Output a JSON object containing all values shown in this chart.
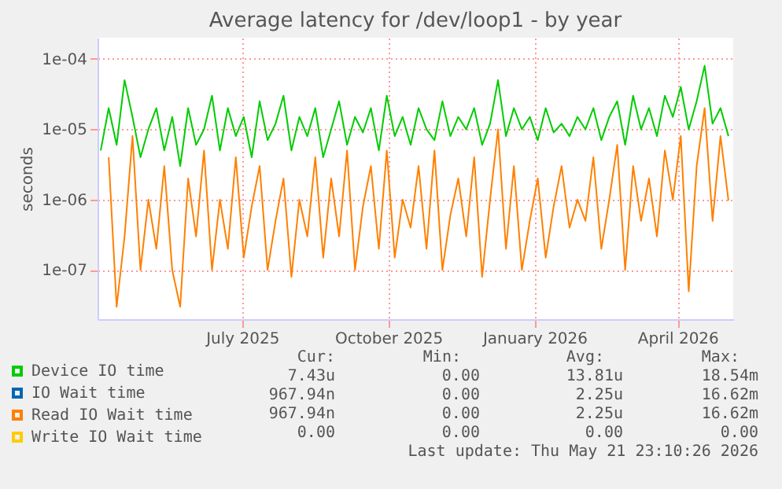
{
  "chart_data": {
    "type": "line",
    "title": "Average latency for /dev/loop1 - by year",
    "ylabel": "seconds",
    "log": "y",
    "grid": true,
    "legend": "bottom",
    "xlim": [
      "2025-04-16",
      "2026-05-21"
    ],
    "xticks": [
      {
        "value": "2025-07-16",
        "label": "July 2025"
      },
      {
        "value": "2025-10-16",
        "label": "October 2025"
      },
      {
        "value": "2026-01-16",
        "label": "January 2026"
      },
      {
        "value": "2026-04-16",
        "label": "April 2026"
      }
    ],
    "ylim": [
      2e-08,
      0.0002
    ],
    "yticks": [
      {
        "value": 1e-07,
        "label": "1e-07"
      },
      {
        "value": 1e-06,
        "label": "1e-06"
      },
      {
        "value": 1e-05,
        "label": "1e-05"
      },
      {
        "value": 0.0001,
        "label": "1e-04"
      }
    ],
    "x": [
      "2025-04-18",
      "2025-04-23",
      "2025-04-28",
      "2025-05-03",
      "2025-05-08",
      "2025-05-13",
      "2025-05-18",
      "2025-05-23",
      "2025-05-28",
      "2025-06-02",
      "2025-06-07",
      "2025-06-12",
      "2025-06-17",
      "2025-06-22",
      "2025-06-27",
      "2025-07-02",
      "2025-07-07",
      "2025-07-12",
      "2025-07-17",
      "2025-07-22",
      "2025-07-27",
      "2025-08-01",
      "2025-08-06",
      "2025-08-11",
      "2025-08-16",
      "2025-08-21",
      "2025-08-26",
      "2025-08-31",
      "2025-09-05",
      "2025-09-10",
      "2025-09-15",
      "2025-09-20",
      "2025-09-25",
      "2025-09-30",
      "2025-10-05",
      "2025-10-10",
      "2025-10-15",
      "2025-10-20",
      "2025-10-25",
      "2025-10-30",
      "2025-11-04",
      "2025-11-09",
      "2025-11-14",
      "2025-11-19",
      "2025-11-24",
      "2025-11-29",
      "2025-12-04",
      "2025-12-09",
      "2025-12-14",
      "2025-12-19",
      "2025-12-24",
      "2025-12-29",
      "2026-01-03",
      "2026-01-08",
      "2026-01-13",
      "2026-01-18",
      "2026-01-23",
      "2026-01-28",
      "2026-02-02",
      "2026-02-07",
      "2026-02-12",
      "2026-02-17",
      "2026-02-22",
      "2026-02-27",
      "2026-03-04",
      "2026-03-09",
      "2026-03-14",
      "2026-03-19",
      "2026-03-24",
      "2026-03-29",
      "2026-04-03",
      "2026-04-08",
      "2026-04-13",
      "2026-04-18",
      "2026-04-23",
      "2026-04-28",
      "2026-05-03",
      "2026-05-08",
      "2026-05-13",
      "2026-05-18"
    ],
    "series": [
      {
        "name": "Device IO time",
        "color": "#00cc00",
        "values": [
          5e-06,
          2e-05,
          6e-06,
          5e-05,
          1.5e-05,
          4e-06,
          1e-05,
          2e-05,
          5e-06,
          1.5e-05,
          3e-06,
          2e-05,
          6e-06,
          1e-05,
          3e-05,
          5e-06,
          2e-05,
          8e-06,
          1.5e-05,
          4e-06,
          2.5e-05,
          7e-06,
          1.2e-05,
          3e-05,
          5e-06,
          1.5e-05,
          8e-06,
          2e-05,
          4e-06,
          1e-05,
          2.5e-05,
          6e-06,
          1.5e-05,
          9e-06,
          2e-05,
          5e-06,
          3e-05,
          8e-06,
          1.5e-05,
          6e-06,
          2e-05,
          1e-05,
          7e-06,
          2.5e-05,
          8e-06,
          1.5e-05,
          1e-05,
          2e-05,
          6e-06,
          1.2e-05,
          5e-05,
          8e-06,
          2e-05,
          1e-05,
          1.5e-05,
          7e-06,
          2e-05,
          9e-06,
          1.2e-05,
          8e-06,
          1.5e-05,
          1e-05,
          2e-05,
          7e-06,
          1.5e-05,
          2.5e-05,
          6e-06,
          3e-05,
          1e-05,
          2e-05,
          8e-06,
          3e-05,
          1.5e-05,
          4e-05,
          1e-05,
          2.5e-05,
          8e-05,
          1.2e-05,
          2e-05,
          8e-06
        ]
      },
      {
        "name": "IO Wait time",
        "color": "#0066b3",
        "values": [
          null,
          null,
          null,
          null,
          null,
          null,
          null,
          null,
          null,
          null,
          null,
          null,
          null,
          null,
          null,
          null,
          null,
          null,
          null,
          null,
          null,
          null,
          null,
          null,
          null,
          null,
          null,
          null,
          null,
          null,
          null,
          null,
          null,
          null,
          null,
          null,
          null,
          null,
          null,
          null,
          null,
          null,
          null,
          null,
          null,
          null,
          null,
          null,
          null,
          null,
          null,
          null,
          null,
          null,
          null,
          null,
          null,
          null,
          null,
          null,
          null,
          null,
          null,
          null,
          null,
          null,
          null,
          null,
          null,
          null,
          null,
          null,
          null,
          null,
          null,
          null,
          null,
          null,
          null,
          null
        ]
      },
      {
        "name": "Read IO Wait time",
        "color": "#ff8000",
        "values": [
          null,
          4e-06,
          3e-08,
          3e-07,
          8e-06,
          1e-07,
          1e-06,
          2e-07,
          3e-06,
          1e-07,
          3e-08,
          2e-06,
          3e-07,
          5e-06,
          1e-07,
          1e-06,
          2e-07,
          4e-06,
          1.5e-07,
          8e-07,
          3e-06,
          1e-07,
          5e-07,
          2e-06,
          8e-08,
          1e-06,
          3e-07,
          4e-06,
          1.5e-07,
          2e-06,
          3e-07,
          5e-06,
          1e-07,
          8e-07,
          3e-06,
          2e-07,
          5e-06,
          1.5e-07,
          1e-06,
          4e-07,
          3e-06,
          2e-07,
          5e-06,
          1e-07,
          6e-07,
          2e-06,
          3e-07,
          4e-06,
          8e-08,
          1e-06,
          1e-05,
          2e-07,
          3e-06,
          1e-07,
          5e-07,
          2e-06,
          1.5e-07,
          8e-07,
          3e-06,
          4e-07,
          1e-06,
          5e-07,
          4e-06,
          2e-07,
          1e-06,
          6e-06,
          1e-07,
          3e-06,
          5e-07,
          2e-06,
          3e-07,
          5e-06,
          1e-06,
          8e-06,
          5e-08,
          3e-06,
          2e-05,
          5e-07,
          8e-06,
          9.68e-07
        ]
      },
      {
        "name": "Write IO Wait time",
        "color": "#ffcc00",
        "values": [
          null,
          null,
          null,
          null,
          null,
          null,
          null,
          null,
          null,
          null,
          null,
          null,
          null,
          null,
          null,
          null,
          null,
          null,
          null,
          null,
          null,
          null,
          null,
          null,
          null,
          null,
          null,
          null,
          null,
          null,
          null,
          null,
          null,
          null,
          null,
          null,
          null,
          null,
          null,
          null,
          null,
          null,
          null,
          null,
          null,
          null,
          null,
          null,
          null,
          null,
          null,
          null,
          null,
          null,
          null,
          null,
          null,
          null,
          null,
          null,
          null,
          null,
          null,
          null,
          null,
          null,
          null,
          null,
          null,
          null,
          null,
          null,
          null,
          null,
          null,
          null,
          null,
          null,
          null,
          null
        ]
      }
    ],
    "annotations": [
      "Cur:",
      "Min:",
      "Avg:",
      "Max:",
      "7.43u",
      "0.00",
      "13.81u",
      "18.54m",
      "967.94n",
      "0.00",
      "2.25u",
      "16.62m",
      "967.94n",
      "0.00",
      "2.25u",
      "16.62m",
      "0.00",
      "0.00",
      "0.00",
      "0.00",
      "Last update: Thu May 21 23:10:26 2026"
    ]
  }
}
